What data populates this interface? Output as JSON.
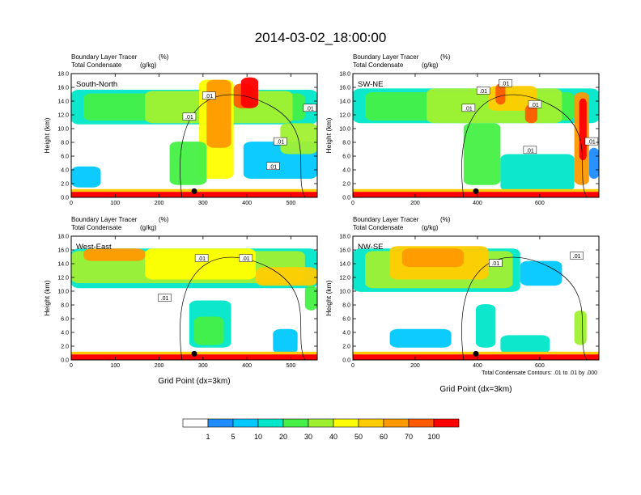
{
  "title": "2014-03-02_18:00:00",
  "subtitle_left": "Boundary Layer Tracer",
  "subtitle_left_units": "(%)",
  "subtitle_right": "Total Condensate",
  "subtitle_right_units": "(g/kg)",
  "ylabel": "Height (km)",
  "xlabel": "Grid Point (dx=3km)",
  "contour_note": "Total Condensate Contours: .01 to .01 by .000",
  "colorbar": {
    "colors": [
      "#ffffff",
      "#1f8cff",
      "#00c8ff",
      "#00e6c8",
      "#46f046",
      "#a0f032",
      "#ffff00",
      "#ffcc00",
      "#ff9900",
      "#ff5a00",
      "#ff0000"
    ],
    "labels": [
      "1",
      "5",
      "10",
      "20",
      "30",
      "40",
      "50",
      "60",
      "70",
      "100"
    ]
  },
  "chart_data": [
    {
      "type": "heatmap",
      "name": "South-North",
      "xlim": [
        0,
        560
      ],
      "xticks": [
        0,
        100,
        200,
        300,
        400,
        500
      ],
      "ylim": [
        0,
        18
      ],
      "yticks": [
        "0.0",
        "2.0",
        "4.0",
        "6.0",
        "8.0",
        "10.0",
        "12.0",
        "14.0",
        "16.0",
        "18.0"
      ],
      "contour_labels": [
        ".01",
        ".01",
        ".01",
        ".01",
        ".01"
      ],
      "marker_x": 280
    },
    {
      "type": "heatmap",
      "name": "SW-NE",
      "xlim": [
        0,
        790
      ],
      "xticks": [
        0,
        200,
        400,
        600
      ],
      "ylim": [
        0,
        18
      ],
      "yticks": [
        "0.0",
        "2.0",
        "4.0",
        "6.0",
        "8.0",
        "10.0",
        "12.0",
        "14.0",
        "16.0",
        "18.0"
      ],
      "contour_labels": [
        ".01",
        ".01",
        ".01",
        ".01",
        ".01",
        ".01"
      ],
      "marker_x": 395
    },
    {
      "type": "heatmap",
      "name": "West-East",
      "xlim": [
        0,
        560
      ],
      "xticks": [
        0,
        100,
        200,
        300,
        400,
        500
      ],
      "ylim": [
        0,
        18
      ],
      "yticks": [
        "0.0",
        "2.0",
        "4.0",
        "6.0",
        "8.0",
        "10.0",
        "12.0",
        "14.0",
        "16.0",
        "18.0"
      ],
      "contour_labels": [
        ".01",
        ".01",
        ".01"
      ],
      "marker_x": 280
    },
    {
      "type": "heatmap",
      "name": "NW-SE",
      "xlim": [
        0,
        790
      ],
      "xticks": [
        0,
        200,
        400,
        600
      ],
      "ylim": [
        0,
        18
      ],
      "yticks": [
        "0.0",
        "2.0",
        "4.0",
        "6.0",
        "8.0",
        "10.0",
        "12.0",
        "14.0",
        "16.0",
        "18.0"
      ],
      "contour_labels": [
        ".01",
        ".01"
      ],
      "marker_x": 395
    }
  ]
}
